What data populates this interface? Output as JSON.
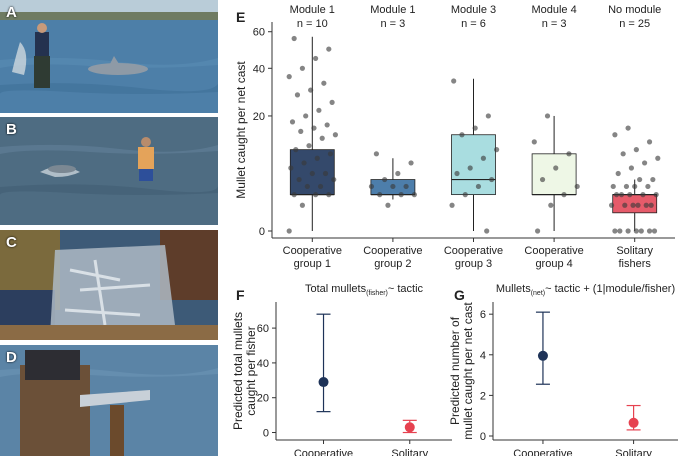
{
  "photos": [
    {
      "label": "A",
      "colors": {
        "sky": "#b9ccd8",
        "water": "#4d7fa8",
        "land": "#6f7b62"
      }
    },
    {
      "label": "B",
      "colors": {
        "sky": "#5b7387",
        "water": "#4e6c82",
        "land": "#5b6f7d"
      }
    },
    {
      "label": "C",
      "colors": {
        "sky": "#2f4d6a",
        "water": "#3d5a77",
        "land": "#8b6b45"
      }
    },
    {
      "label": "D",
      "colors": {
        "sky": "#6a8dab",
        "water": "#5b84a6",
        "land": "#6b5038"
      }
    }
  ],
  "panels": {
    "e": {
      "label": "E"
    },
    "f": {
      "label": "F"
    },
    "g": {
      "label": "G"
    }
  },
  "chart_data": [
    {
      "type": "box",
      "panel": "E",
      "ylabel": "Mullet caught per net cast",
      "y_scale": "sqrt",
      "yticks": [
        0,
        20,
        40,
        60
      ],
      "ylim": [
        0,
        66
      ],
      "categories": [
        "Cooperative\ngroup 1",
        "Cooperative\ngroup 2",
        "Cooperative\ngroup 3",
        "Cooperative\ngroup 4",
        "Solitary\nfishers"
      ],
      "headers": [
        {
          "title": "Module 1",
          "n": "n = 10"
        },
        {
          "title": "Module 1",
          "n": "n = 3"
        },
        {
          "title": "Module 3",
          "n": "n = 6"
        },
        {
          "title": "Module 4",
          "n": "n = 3"
        },
        {
          "title": "No module",
          "n": "n = 25"
        }
      ],
      "colors": [
        "#34496b",
        "#4d7eab",
        "#a9dde0",
        "#eef7e6",
        "#e65b6a"
      ],
      "boxes": [
        {
          "q1": 2,
          "median": 2,
          "q3": 10,
          "whisker_low": 0,
          "whisker_high": 57
        },
        {
          "q1": 2,
          "median": 2,
          "q3": 4,
          "whisker_low": 1.5,
          "whisker_high": 8
        },
        {
          "q1": 2,
          "median": 4,
          "q3": 14,
          "whisker_low": 0,
          "whisker_high": 35
        },
        {
          "q1": 2,
          "median": 2,
          "q3": 9,
          "whisker_low": 0,
          "whisker_high": 20
        },
        {
          "q1": 0.5,
          "median": 2,
          "q3": 2,
          "whisker_low": 0,
          "whisker_high": 4
        }
      ],
      "points": [
        [
          0,
          1,
          2,
          2,
          2,
          3,
          3,
          4,
          4,
          5,
          5,
          6,
          7,
          8,
          9,
          10,
          11,
          13,
          14,
          15,
          16,
          17,
          18,
          20,
          22,
          25,
          28,
          30,
          33,
          36,
          40,
          45,
          50,
          56
        ],
        [
          1,
          2,
          2,
          2,
          3,
          3,
          3,
          4,
          5,
          7,
          9
        ],
        [
          0,
          1,
          2,
          3,
          4,
          5,
          6,
          8,
          10,
          14,
          16,
          20,
          34
        ],
        [
          0,
          1,
          2,
          3,
          4,
          6,
          9,
          12,
          20
        ],
        [
          0,
          0,
          0,
          0,
          0,
          0,
          0,
          1,
          1,
          1,
          1,
          1,
          1,
          2,
          2,
          2,
          2,
          2,
          3,
          3,
          3,
          3,
          4,
          4,
          5,
          6,
          7,
          8,
          9,
          10,
          12,
          14,
          16
        ]
      ]
    },
    {
      "type": "pointrange",
      "panel": "F",
      "title_main": "Total mullets",
      "title_sub": "(fisher)",
      "title_rest": "~ tactic",
      "ylabel": [
        "Predicted total mullets",
        "caught per fisher"
      ],
      "categories": [
        "Cooperative",
        "Solitary"
      ],
      "values": [
        29,
        3
      ],
      "lower": [
        12,
        0
      ],
      "upper": [
        68,
        7
      ],
      "yticks": [
        0,
        20,
        40,
        60
      ],
      "ylim": [
        -2,
        75
      ],
      "colors": [
        "#1e3358",
        "#e64250"
      ]
    },
    {
      "type": "pointrange",
      "panel": "G",
      "title_main": "Mullets",
      "title_sub": "(net)",
      "title_rest": "~ tactic + (1|module/fisher)",
      "ylabel": [
        "Predicted number of",
        "mullet caught per net cast"
      ],
      "categories": [
        "Cooperative",
        "Solitary"
      ],
      "values": [
        3.95,
        0.65
      ],
      "lower": [
        2.55,
        0.3
      ],
      "upper": [
        6.1,
        1.5
      ],
      "yticks": [
        0,
        2,
        4,
        6
      ],
      "ylim": [
        0,
        6.6
      ],
      "colors": [
        "#1e3358",
        "#e64250"
      ]
    }
  ]
}
